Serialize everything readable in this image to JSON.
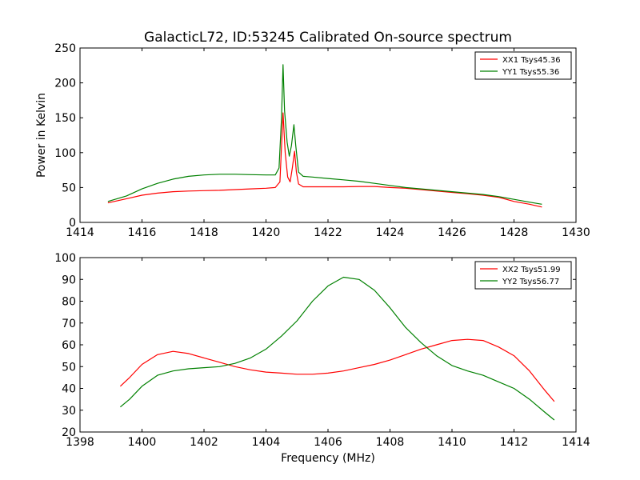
{
  "chart_data": [
    {
      "type": "line",
      "title": "GalacticL72, ID:53245 Calibrated On-source spectrum",
      "xlabel": "",
      "ylabel": "Power in Kelvin",
      "xlim": [
        1414,
        1430
      ],
      "ylim": [
        0,
        250
      ],
      "xticks": [
        "1414",
        "1416",
        "1418",
        "1420",
        "1422",
        "1424",
        "1426",
        "1428",
        "1430"
      ],
      "yticks": [
        "0",
        "50",
        "100",
        "150",
        "200",
        "250"
      ],
      "legend_position": "top-right",
      "series": [
        {
          "name": "XX1 Tsys45.36",
          "color": "#ff0000",
          "points": [
            [
              1414.9,
              28
            ],
            [
              1415.5,
              34
            ],
            [
              1416,
              39
            ],
            [
              1416.5,
              42
            ],
            [
              1417,
              44
            ],
            [
              1417.5,
              45
            ],
            [
              1418,
              45.5
            ],
            [
              1418.5,
              46
            ],
            [
              1419,
              47
            ],
            [
              1419.5,
              48
            ],
            [
              1420,
              49
            ],
            [
              1420.3,
              50
            ],
            [
              1420.45,
              58
            ],
            [
              1420.55,
              157
            ],
            [
              1420.62,
              100
            ],
            [
              1420.7,
              65
            ],
            [
              1420.78,
              58
            ],
            [
              1420.85,
              78
            ],
            [
              1420.92,
              102
            ],
            [
              1420.98,
              72
            ],
            [
              1421.05,
              55
            ],
            [
              1421.2,
              51
            ],
            [
              1421.5,
              51
            ],
            [
              1422,
              51
            ],
            [
              1422.5,
              51
            ],
            [
              1423,
              51.5
            ],
            [
              1423.5,
              51.5
            ],
            [
              1424,
              50
            ],
            [
              1424.5,
              49
            ],
            [
              1425,
              47
            ],
            [
              1425.5,
              45
            ],
            [
              1426,
              43
            ],
            [
              1426.5,
              41
            ],
            [
              1427,
              39
            ],
            [
              1427.5,
              36
            ],
            [
              1428,
              30
            ],
            [
              1428.5,
              26
            ],
            [
              1428.9,
              22
            ]
          ]
        },
        {
          "name": "YY1 Tsys55.36",
          "color": "#008000",
          "points": [
            [
              1414.9,
              30
            ],
            [
              1415.5,
              38
            ],
            [
              1416,
              48
            ],
            [
              1416.5,
              56
            ],
            [
              1417,
              62
            ],
            [
              1417.5,
              66
            ],
            [
              1418,
              68
            ],
            [
              1418.5,
              69
            ],
            [
              1419,
              69
            ],
            [
              1419.5,
              68.5
            ],
            [
              1420,
              68
            ],
            [
              1420.3,
              68
            ],
            [
              1420.42,
              78
            ],
            [
              1420.5,
              150
            ],
            [
              1420.55,
              226
            ],
            [
              1420.6,
              160
            ],
            [
              1420.68,
              115
            ],
            [
              1420.75,
              95
            ],
            [
              1420.82,
              110
            ],
            [
              1420.9,
              140
            ],
            [
              1420.96,
              110
            ],
            [
              1421.05,
              72
            ],
            [
              1421.2,
              66
            ],
            [
              1421.5,
              65
            ],
            [
              1422,
              63
            ],
            [
              1422.5,
              61
            ],
            [
              1423,
              59
            ],
            [
              1423.5,
              56
            ],
            [
              1424,
              53
            ],
            [
              1424.5,
              50
            ],
            [
              1425,
              48
            ],
            [
              1425.5,
              46
            ],
            [
              1426,
              44
            ],
            [
              1426.5,
              42
            ],
            [
              1427,
              40
            ],
            [
              1427.5,
              37
            ],
            [
              1428,
              33
            ],
            [
              1428.5,
              29
            ],
            [
              1428.9,
              26
            ]
          ]
        }
      ]
    },
    {
      "type": "line",
      "title": "",
      "xlabel": "Frequency (MHz)",
      "ylabel": "",
      "xlim": [
        1398,
        1414
      ],
      "ylim": [
        20,
        100
      ],
      "xticks": [
        "1398",
        "1400",
        "1402",
        "1404",
        "1406",
        "1408",
        "1410",
        "1412",
        "1414"
      ],
      "yticks": [
        "20",
        "30",
        "40",
        "50",
        "60",
        "70",
        "80",
        "90",
        "100"
      ],
      "legend_position": "top-right",
      "series": [
        {
          "name": "XX2 Tsys51.99",
          "color": "#ff0000",
          "points": [
            [
              1399.3,
              41
            ],
            [
              1399.6,
              45
            ],
            [
              1400,
              51
            ],
            [
              1400.5,
              55.5
            ],
            [
              1401,
              57
            ],
            [
              1401.5,
              56
            ],
            [
              1402,
              54
            ],
            [
              1402.5,
              52
            ],
            [
              1403,
              50
            ],
            [
              1403.5,
              48.5
            ],
            [
              1404,
              47.5
            ],
            [
              1404.5,
              47
            ],
            [
              1405,
              46.5
            ],
            [
              1405.5,
              46.5
            ],
            [
              1406,
              47
            ],
            [
              1406.5,
              48
            ],
            [
              1407,
              49.5
            ],
            [
              1407.5,
              51
            ],
            [
              1408,
              53
            ],
            [
              1408.5,
              55.5
            ],
            [
              1409,
              58
            ],
            [
              1409.5,
              60
            ],
            [
              1410,
              62
            ],
            [
              1410.5,
              62.5
            ],
            [
              1411,
              62
            ],
            [
              1411.5,
              59
            ],
            [
              1412,
              55
            ],
            [
              1412.5,
              48
            ],
            [
              1413,
              39
            ],
            [
              1413.3,
              34
            ]
          ]
        },
        {
          "name": "YY2 Tsys56.77",
          "color": "#008000",
          "points": [
            [
              1399.3,
              31.5
            ],
            [
              1399.6,
              35
            ],
            [
              1400,
              41
            ],
            [
              1400.5,
              46
            ],
            [
              1401,
              48
            ],
            [
              1401.5,
              49
            ],
            [
              1402,
              49.5
            ],
            [
              1402.5,
              50
            ],
            [
              1403,
              51.5
            ],
            [
              1403.5,
              54
            ],
            [
              1404,
              58
            ],
            [
              1404.5,
              64
            ],
            [
              1405,
              71
            ],
            [
              1405.5,
              80
            ],
            [
              1406,
              87
            ],
            [
              1406.5,
              91
            ],
            [
              1407,
              90
            ],
            [
              1407.5,
              85
            ],
            [
              1408,
              77
            ],
            [
              1408.5,
              68
            ],
            [
              1409,
              61
            ],
            [
              1409.5,
              55
            ],
            [
              1410,
              50.5
            ],
            [
              1410.5,
              48
            ],
            [
              1411,
              46
            ],
            [
              1411.5,
              43
            ],
            [
              1412,
              40
            ],
            [
              1412.5,
              35
            ],
            [
              1413,
              29
            ],
            [
              1413.3,
              25.5
            ]
          ]
        }
      ]
    }
  ]
}
